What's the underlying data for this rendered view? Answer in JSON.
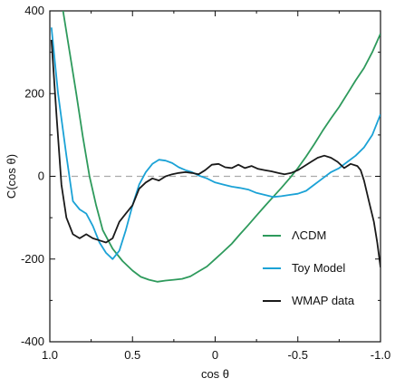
{
  "chart_data": {
    "type": "line",
    "xlabel": "cos θ",
    "ylabel": "C(cos θ)",
    "xlim": [
      1.0,
      -1.0
    ],
    "ylim": [
      -400,
      400
    ],
    "x_ticks": [
      1.0,
      0.5,
      0,
      -0.5,
      -1.0
    ],
    "x_tick_labels": [
      "1.0",
      "0.5",
      "0",
      "-0.5",
      "-1.0"
    ],
    "y_ticks": [
      400,
      200,
      0,
      -200,
      -400
    ],
    "y_tick_labels": [
      "400",
      "200",
      "0",
      "-200",
      "-400"
    ],
    "reference_line": {
      "y": 0,
      "style": "dashed",
      "color": "#aaaaaa"
    },
    "legend_position": "lower-right",
    "series": [
      {
        "name": "ΛCDM",
        "color": "#2e9a5c",
        "points": [
          [
            0.92,
            400
          ],
          [
            0.88,
            300
          ],
          [
            0.84,
            200
          ],
          [
            0.8,
            95
          ],
          [
            0.76,
            0
          ],
          [
            0.72,
            -70
          ],
          [
            0.68,
            -130
          ],
          [
            0.62,
            -175
          ],
          [
            0.56,
            -205
          ],
          [
            0.5,
            -228
          ],
          [
            0.45,
            -243
          ],
          [
            0.4,
            -250
          ],
          [
            0.35,
            -255
          ],
          [
            0.3,
            -252
          ],
          [
            0.25,
            -250
          ],
          [
            0.2,
            -248
          ],
          [
            0.15,
            -242
          ],
          [
            0.1,
            -230
          ],
          [
            0.05,
            -218
          ],
          [
            0.0,
            -200
          ],
          [
            -0.05,
            -182
          ],
          [
            -0.1,
            -163
          ],
          [
            -0.15,
            -140
          ],
          [
            -0.2,
            -118
          ],
          [
            -0.25,
            -95
          ],
          [
            -0.3,
            -72
          ],
          [
            -0.35,
            -50
          ],
          [
            -0.4,
            -28
          ],
          [
            -0.45,
            -5
          ],
          [
            -0.5,
            20
          ],
          [
            -0.55,
            48
          ],
          [
            -0.6,
            78
          ],
          [
            -0.65,
            110
          ],
          [
            -0.7,
            140
          ],
          [
            -0.75,
            168
          ],
          [
            -0.8,
            200
          ],
          [
            -0.85,
            232
          ],
          [
            -0.9,
            262
          ],
          [
            -0.95,
            300
          ],
          [
            -1.0,
            345
          ]
        ]
      },
      {
        "name": "Toy Model",
        "color": "#1ba2d6",
        "points": [
          [
            0.99,
            360
          ],
          [
            0.95,
            200
          ],
          [
            0.9,
            50
          ],
          [
            0.86,
            -60
          ],
          [
            0.82,
            -80
          ],
          [
            0.78,
            -90
          ],
          [
            0.74,
            -120
          ],
          [
            0.7,
            -160
          ],
          [
            0.66,
            -185
          ],
          [
            0.62,
            -200
          ],
          [
            0.58,
            -180
          ],
          [
            0.54,
            -130
          ],
          [
            0.5,
            -70
          ],
          [
            0.46,
            -20
          ],
          [
            0.42,
            10
          ],
          [
            0.38,
            30
          ],
          [
            0.34,
            40
          ],
          [
            0.3,
            38
          ],
          [
            0.26,
            32
          ],
          [
            0.22,
            22
          ],
          [
            0.18,
            15
          ],
          [
            0.14,
            10
          ],
          [
            0.1,
            2
          ],
          [
            0.05,
            -5
          ],
          [
            0.0,
            -15
          ],
          [
            -0.05,
            -20
          ],
          [
            -0.1,
            -25
          ],
          [
            -0.15,
            -28
          ],
          [
            -0.2,
            -32
          ],
          [
            -0.25,
            -40
          ],
          [
            -0.3,
            -45
          ],
          [
            -0.35,
            -50
          ],
          [
            -0.4,
            -48
          ],
          [
            -0.45,
            -45
          ],
          [
            -0.5,
            -42
          ],
          [
            -0.55,
            -35
          ],
          [
            -0.6,
            -20
          ],
          [
            -0.65,
            -5
          ],
          [
            -0.7,
            10
          ],
          [
            -0.75,
            20
          ],
          [
            -0.8,
            35
          ],
          [
            -0.85,
            50
          ],
          [
            -0.9,
            70
          ],
          [
            -0.95,
            100
          ],
          [
            -1.0,
            150
          ]
        ]
      },
      {
        "name": "WMAP data",
        "color": "#1a1a1a",
        "points": [
          [
            0.99,
            330
          ],
          [
            0.96,
            150
          ],
          [
            0.93,
            -20
          ],
          [
            0.9,
            -100
          ],
          [
            0.86,
            -140
          ],
          [
            0.82,
            -150
          ],
          [
            0.78,
            -140
          ],
          [
            0.74,
            -150
          ],
          [
            0.7,
            -155
          ],
          [
            0.66,
            -160
          ],
          [
            0.62,
            -150
          ],
          [
            0.58,
            -110
          ],
          [
            0.54,
            -90
          ],
          [
            0.5,
            -70
          ],
          [
            0.46,
            -30
          ],
          [
            0.42,
            -15
          ],
          [
            0.38,
            -5
          ],
          [
            0.34,
            -10
          ],
          [
            0.3,
            0
          ],
          [
            0.26,
            5
          ],
          [
            0.22,
            8
          ],
          [
            0.18,
            10
          ],
          [
            0.14,
            8
          ],
          [
            0.1,
            5
          ],
          [
            0.06,
            15
          ],
          [
            0.02,
            28
          ],
          [
            -0.02,
            30
          ],
          [
            -0.06,
            22
          ],
          [
            -0.1,
            20
          ],
          [
            -0.14,
            28
          ],
          [
            -0.18,
            20
          ],
          [
            -0.22,
            25
          ],
          [
            -0.26,
            18
          ],
          [
            -0.3,
            15
          ],
          [
            -0.34,
            12
          ],
          [
            -0.38,
            8
          ],
          [
            -0.42,
            5
          ],
          [
            -0.46,
            8
          ],
          [
            -0.5,
            15
          ],
          [
            -0.54,
            25
          ],
          [
            -0.58,
            35
          ],
          [
            -0.62,
            45
          ],
          [
            -0.66,
            50
          ],
          [
            -0.7,
            45
          ],
          [
            -0.74,
            35
          ],
          [
            -0.78,
            20
          ],
          [
            -0.82,
            30
          ],
          [
            -0.86,
            25
          ],
          [
            -0.88,
            15
          ],
          [
            -0.9,
            -10
          ],
          [
            -0.93,
            -60
          ],
          [
            -0.96,
            -110
          ],
          [
            -0.98,
            -160
          ],
          [
            -1.0,
            -220
          ]
        ]
      }
    ]
  }
}
